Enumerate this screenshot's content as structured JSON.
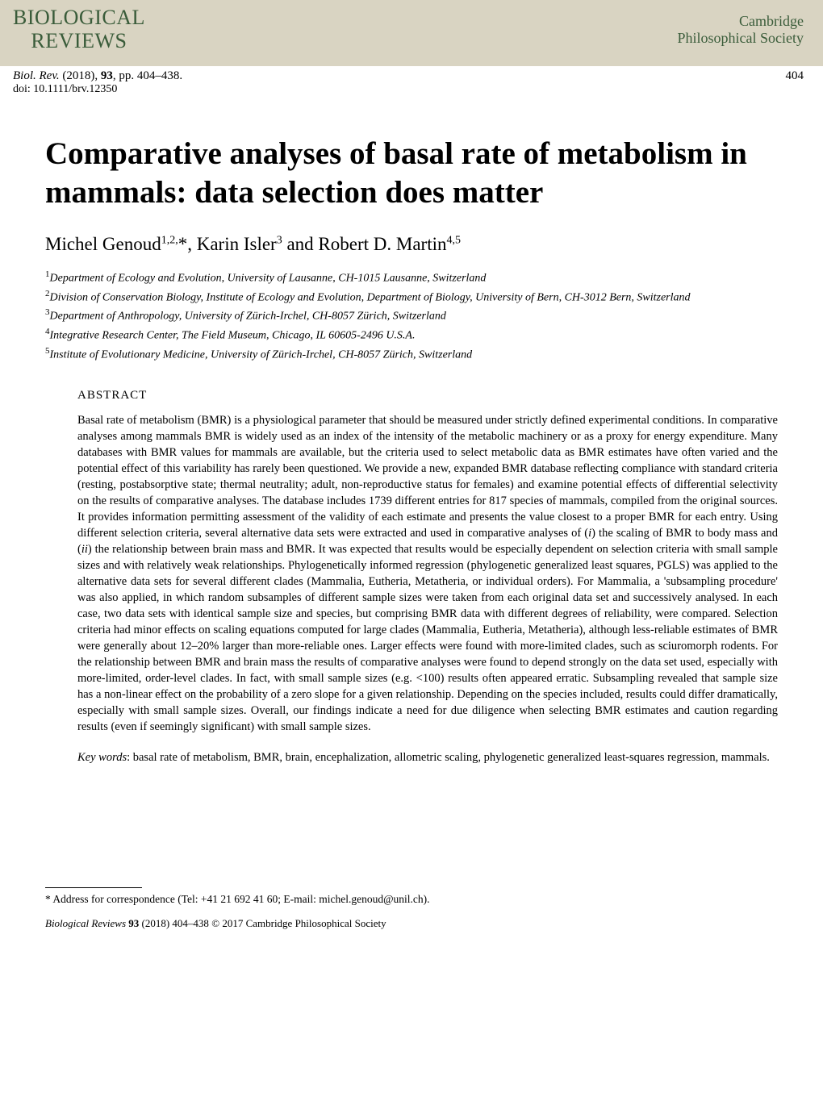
{
  "header": {
    "journal_logo_line1": "BIOLOGICAL",
    "journal_logo_line2": "REVIEWS",
    "society_line1": "Cambridge",
    "society_line2": "Philosophical Society",
    "logo_color": "#3a5c3a",
    "header_bg": "#d9d4c2"
  },
  "citation": {
    "journal_abbrev": "Biol. Rev.",
    "year": "(2018),",
    "volume": "93",
    "pages": ", pp. 404–438.",
    "page_number": "404",
    "doi": "doi: 10.1111/brv.12350"
  },
  "title": "Comparative analyses of basal rate of metabolism in mammals: data selection does matter",
  "authors_html": "Michel Genoud<sup>1,2,</sup>*, Karin Isler<sup>3</sup> and Robert D. Martin<sup>4,5</sup>",
  "affiliations": [
    "Department of Ecology and Evolution, University of Lausanne, CH-1015 Lausanne, Switzerland",
    "Division of Conservation Biology, Institute of Ecology and Evolution, Department of Biology, University of Bern, CH-3012 Bern, Switzerland",
    "Department of Anthropology, University of Zürich-Irchel, CH-8057 Zürich, Switzerland",
    "Integrative Research Center, The Field Museum, Chicago, IL 60605-2496 U.S.A.",
    "Institute of Evolutionary Medicine, University of Zürich-Irchel, CH-8057 Zürich, Switzerland"
  ],
  "abstract_label": "ABSTRACT",
  "abstract": "Basal rate of metabolism (BMR) is a physiological parameter that should be measured under strictly defined experimental conditions. In comparative analyses among mammals BMR is widely used as an index of the intensity of the metabolic machinery or as a proxy for energy expenditure. Many databases with BMR values for mammals are available, but the criteria used to select metabolic data as BMR estimates have often varied and the potential effect of this variability has rarely been questioned. We provide a new, expanded BMR database reflecting compliance with standard criteria (resting, postabsorptive state; thermal neutrality; adult, non-reproductive status for females) and examine potential effects of differential selectivity on the results of comparative analyses. The database includes 1739 different entries for 817 species of mammals, compiled from the original sources. It provides information permitting assessment of the validity of each estimate and presents the value closest to a proper BMR for each entry. Using different selection criteria, several alternative data sets were extracted and used in comparative analyses of (i) the scaling of BMR to body mass and (ii) the relationship between brain mass and BMR. It was expected that results would be especially dependent on selection criteria with small sample sizes and with relatively weak relationships. Phylogenetically informed regression (phylogenetic generalized least squares, PGLS) was applied to the alternative data sets for several different clades (Mammalia, Eutheria, Metatheria, or individual orders). For Mammalia, a 'subsampling procedure' was also applied, in which random subsamples of different sample sizes were taken from each original data set and successively analysed. In each case, two data sets with identical sample size and species, but comprising BMR data with different degrees of reliability, were compared. Selection criteria had minor effects on scaling equations computed for large clades (Mammalia, Eutheria, Metatheria), although less-reliable estimates of BMR were generally about 12–20% larger than more-reliable ones. Larger effects were found with more-limited clades, such as sciuromorph rodents. For the relationship between BMR and brain mass the results of comparative analyses were found to depend strongly on the data set used, especially with more-limited, order-level clades. In fact, with small sample sizes (e.g. <100) results often appeared erratic. Subsampling revealed that sample size has a non-linear effect on the probability of a zero slope for a given relationship. Depending on the species included, results could differ dramatically, especially with small sample sizes. Overall, our findings indicate a need for due diligence when selecting BMR estimates and caution regarding results (even if seemingly significant) with small sample sizes.",
  "keywords_label": "Key words",
  "keywords": ": basal rate of metabolism, BMR, brain, encephalization, allometric scaling, phylogenetic generalized least-squares regression, mammals.",
  "correspondence": "* Address for correspondence (Tel: +41 21 692 41 60; E-mail: michel.genoud@unil.ch).",
  "copyright": {
    "journal": "Biological Reviews",
    "volume": "93",
    "pages_year": " (2018) 404–438 ",
    "rest": "© 2017 Cambridge Philosophical Society"
  },
  "typography": {
    "title_fontsize": 39,
    "body_fontsize": 14.5,
    "authors_fontsize": 23,
    "affil_fontsize": 14,
    "line_height": 1.38
  }
}
